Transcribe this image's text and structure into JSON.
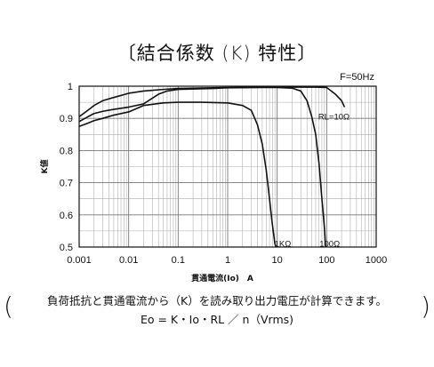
{
  "chart_data": {
    "type": "line",
    "title": "〔結合係数 (K) 特性〕",
    "xlabel": "貫通電流(Io)　A",
    "ylabel": "K値",
    "xscale": "log",
    "xlim": [
      0.001,
      1000
    ],
    "ylim": [
      0.5,
      1.0
    ],
    "grid": true,
    "x_ticks": [
      0.001,
      0.01,
      0.1,
      1,
      10,
      100,
      1000
    ],
    "x_tick_labels": [
      "0.001",
      "0.01",
      "0.1",
      "1",
      "10",
      "100",
      "1000"
    ],
    "y_ticks": [
      0.5,
      0.6,
      0.7,
      0.8,
      0.9,
      1.0
    ],
    "y_tick_labels": [
      "0.5",
      "0.6",
      "0.7",
      "0.8",
      "0.9",
      "1"
    ],
    "annotations": {
      "frequency": "F=50Hz"
    },
    "series": [
      {
        "name": "RL=10Ω",
        "color": "#111111",
        "points": [
          [
            0.001,
            0.905
          ],
          [
            0.0015,
            0.925
          ],
          [
            0.002,
            0.94
          ],
          [
            0.003,
            0.955
          ],
          [
            0.005,
            0.965
          ],
          [
            0.01,
            0.978
          ],
          [
            0.02,
            0.985
          ],
          [
            0.05,
            0.99
          ],
          [
            0.1,
            0.993
          ],
          [
            0.5,
            0.995
          ],
          [
            1,
            0.996
          ],
          [
            5,
            0.997
          ],
          [
            10,
            0.997
          ],
          [
            30,
            0.997
          ],
          [
            60,
            0.997
          ],
          [
            100,
            0.996
          ],
          [
            150,
            0.975
          ],
          [
            200,
            0.955
          ],
          [
            230,
            0.935
          ]
        ]
      },
      {
        "name": "100Ω",
        "color": "#111111",
        "points": [
          [
            0.001,
            0.89
          ],
          [
            0.0015,
            0.905
          ],
          [
            0.002,
            0.915
          ],
          [
            0.003,
            0.922
          ],
          [
            0.005,
            0.928
          ],
          [
            0.01,
            0.935
          ],
          [
            0.02,
            0.945
          ],
          [
            0.04,
            0.975
          ],
          [
            0.06,
            0.985
          ],
          [
            0.1,
            0.99
          ],
          [
            0.5,
            0.993
          ],
          [
            1,
            0.995
          ],
          [
            5,
            0.996
          ],
          [
            10,
            0.996
          ],
          [
            20,
            0.994
          ],
          [
            30,
            0.985
          ],
          [
            40,
            0.955
          ],
          [
            50,
            0.905
          ],
          [
            60,
            0.85
          ],
          [
            70,
            0.76
          ],
          [
            80,
            0.65
          ],
          [
            90,
            0.56
          ],
          [
            95,
            0.5
          ]
        ]
      },
      {
        "name": "1KΩ",
        "color": "#111111",
        "points": [
          [
            0.001,
            0.875
          ],
          [
            0.0015,
            0.885
          ],
          [
            0.002,
            0.893
          ],
          [
            0.003,
            0.9
          ],
          [
            0.005,
            0.91
          ],
          [
            0.01,
            0.92
          ],
          [
            0.02,
            0.94
          ],
          [
            0.05,
            0.948
          ],
          [
            0.1,
            0.95
          ],
          [
            0.3,
            0.95
          ],
          [
            1,
            0.948
          ],
          [
            2,
            0.94
          ],
          [
            3,
            0.925
          ],
          [
            4,
            0.88
          ],
          [
            5,
            0.82
          ],
          [
            6,
            0.74
          ],
          [
            7,
            0.65
          ],
          [
            8,
            0.57
          ],
          [
            9,
            0.51
          ],
          [
            9.5,
            0.5
          ]
        ]
      }
    ],
    "series_labels": [
      {
        "series": "RL=10Ω",
        "at": [
          140,
          0.905
        ]
      },
      {
        "series": "100Ω",
        "at": [
          115,
          0.51
        ]
      },
      {
        "series": "1KΩ",
        "at": [
          13,
          0.51
        ]
      }
    ]
  },
  "note": {
    "line1": "負荷抵抗と貫通電流から（K）を読み取り出力電圧が計算できます。",
    "line2": "Eo = K・Io・RL ／ n（Vrms)",
    "paren_left": "(",
    "paren_right": ")"
  }
}
